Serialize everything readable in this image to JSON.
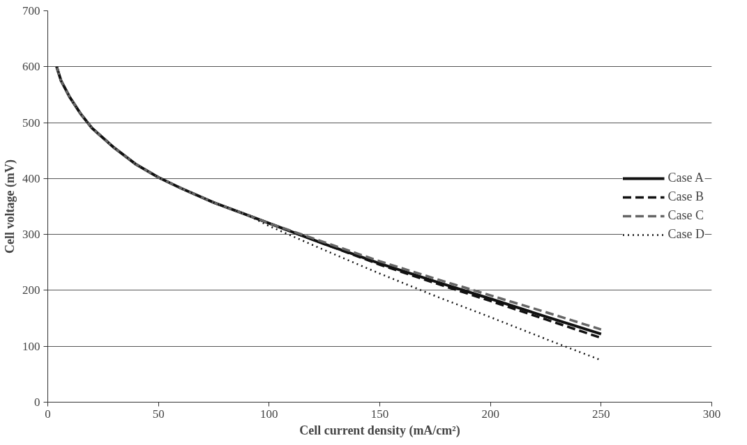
{
  "chart_data": {
    "type": "line",
    "xlabel": "Cell current density (mA/cm²)",
    "ylabel": "Cell voltage (mV)",
    "x": [
      4,
      6,
      10,
      15,
      20,
      30,
      40,
      50,
      60,
      75,
      90,
      100,
      125,
      150,
      175,
      200,
      225,
      250
    ],
    "series": [
      {
        "name": "Case A",
        "color": "#111111",
        "line_style": "solid",
        "values": [
          600,
          575,
          545,
          515,
          490,
          455,
          425,
          402,
          383,
          357,
          335,
          320,
          283,
          248,
          216,
          185,
          153,
          122
        ]
      },
      {
        "name": "Case B",
        "color": "#111111",
        "line_style": "dashed",
        "values": [
          600,
          575,
          545,
          515,
          490,
          455,
          425,
          402,
          383,
          357,
          335,
          320,
          283,
          246,
          213,
          181,
          148,
          115
        ]
      },
      {
        "name": "Case C",
        "color": "#666666",
        "line_style": "dashed",
        "values": [
          600,
          575,
          545,
          515,
          490,
          455,
          425,
          402,
          383,
          357,
          335,
          320,
          286,
          252,
          221,
          191,
          161,
          130
        ]
      },
      {
        "name": "Case D",
        "color": "#111111",
        "line_style": "dotted",
        "values": [
          600,
          575,
          545,
          515,
          490,
          455,
          425,
          402,
          383,
          357,
          335,
          315,
          272,
          230,
          190,
          152,
          113,
          75
        ]
      }
    ],
    "xlim": [
      0,
      300
    ],
    "xticks": [
      0,
      50,
      100,
      150,
      200,
      250,
      300
    ],
    "ylim": [
      0,
      700
    ],
    "yticks": [
      0,
      100,
      200,
      300,
      400,
      500,
      600,
      700
    ],
    "grid": "y",
    "legend": "right"
  }
}
